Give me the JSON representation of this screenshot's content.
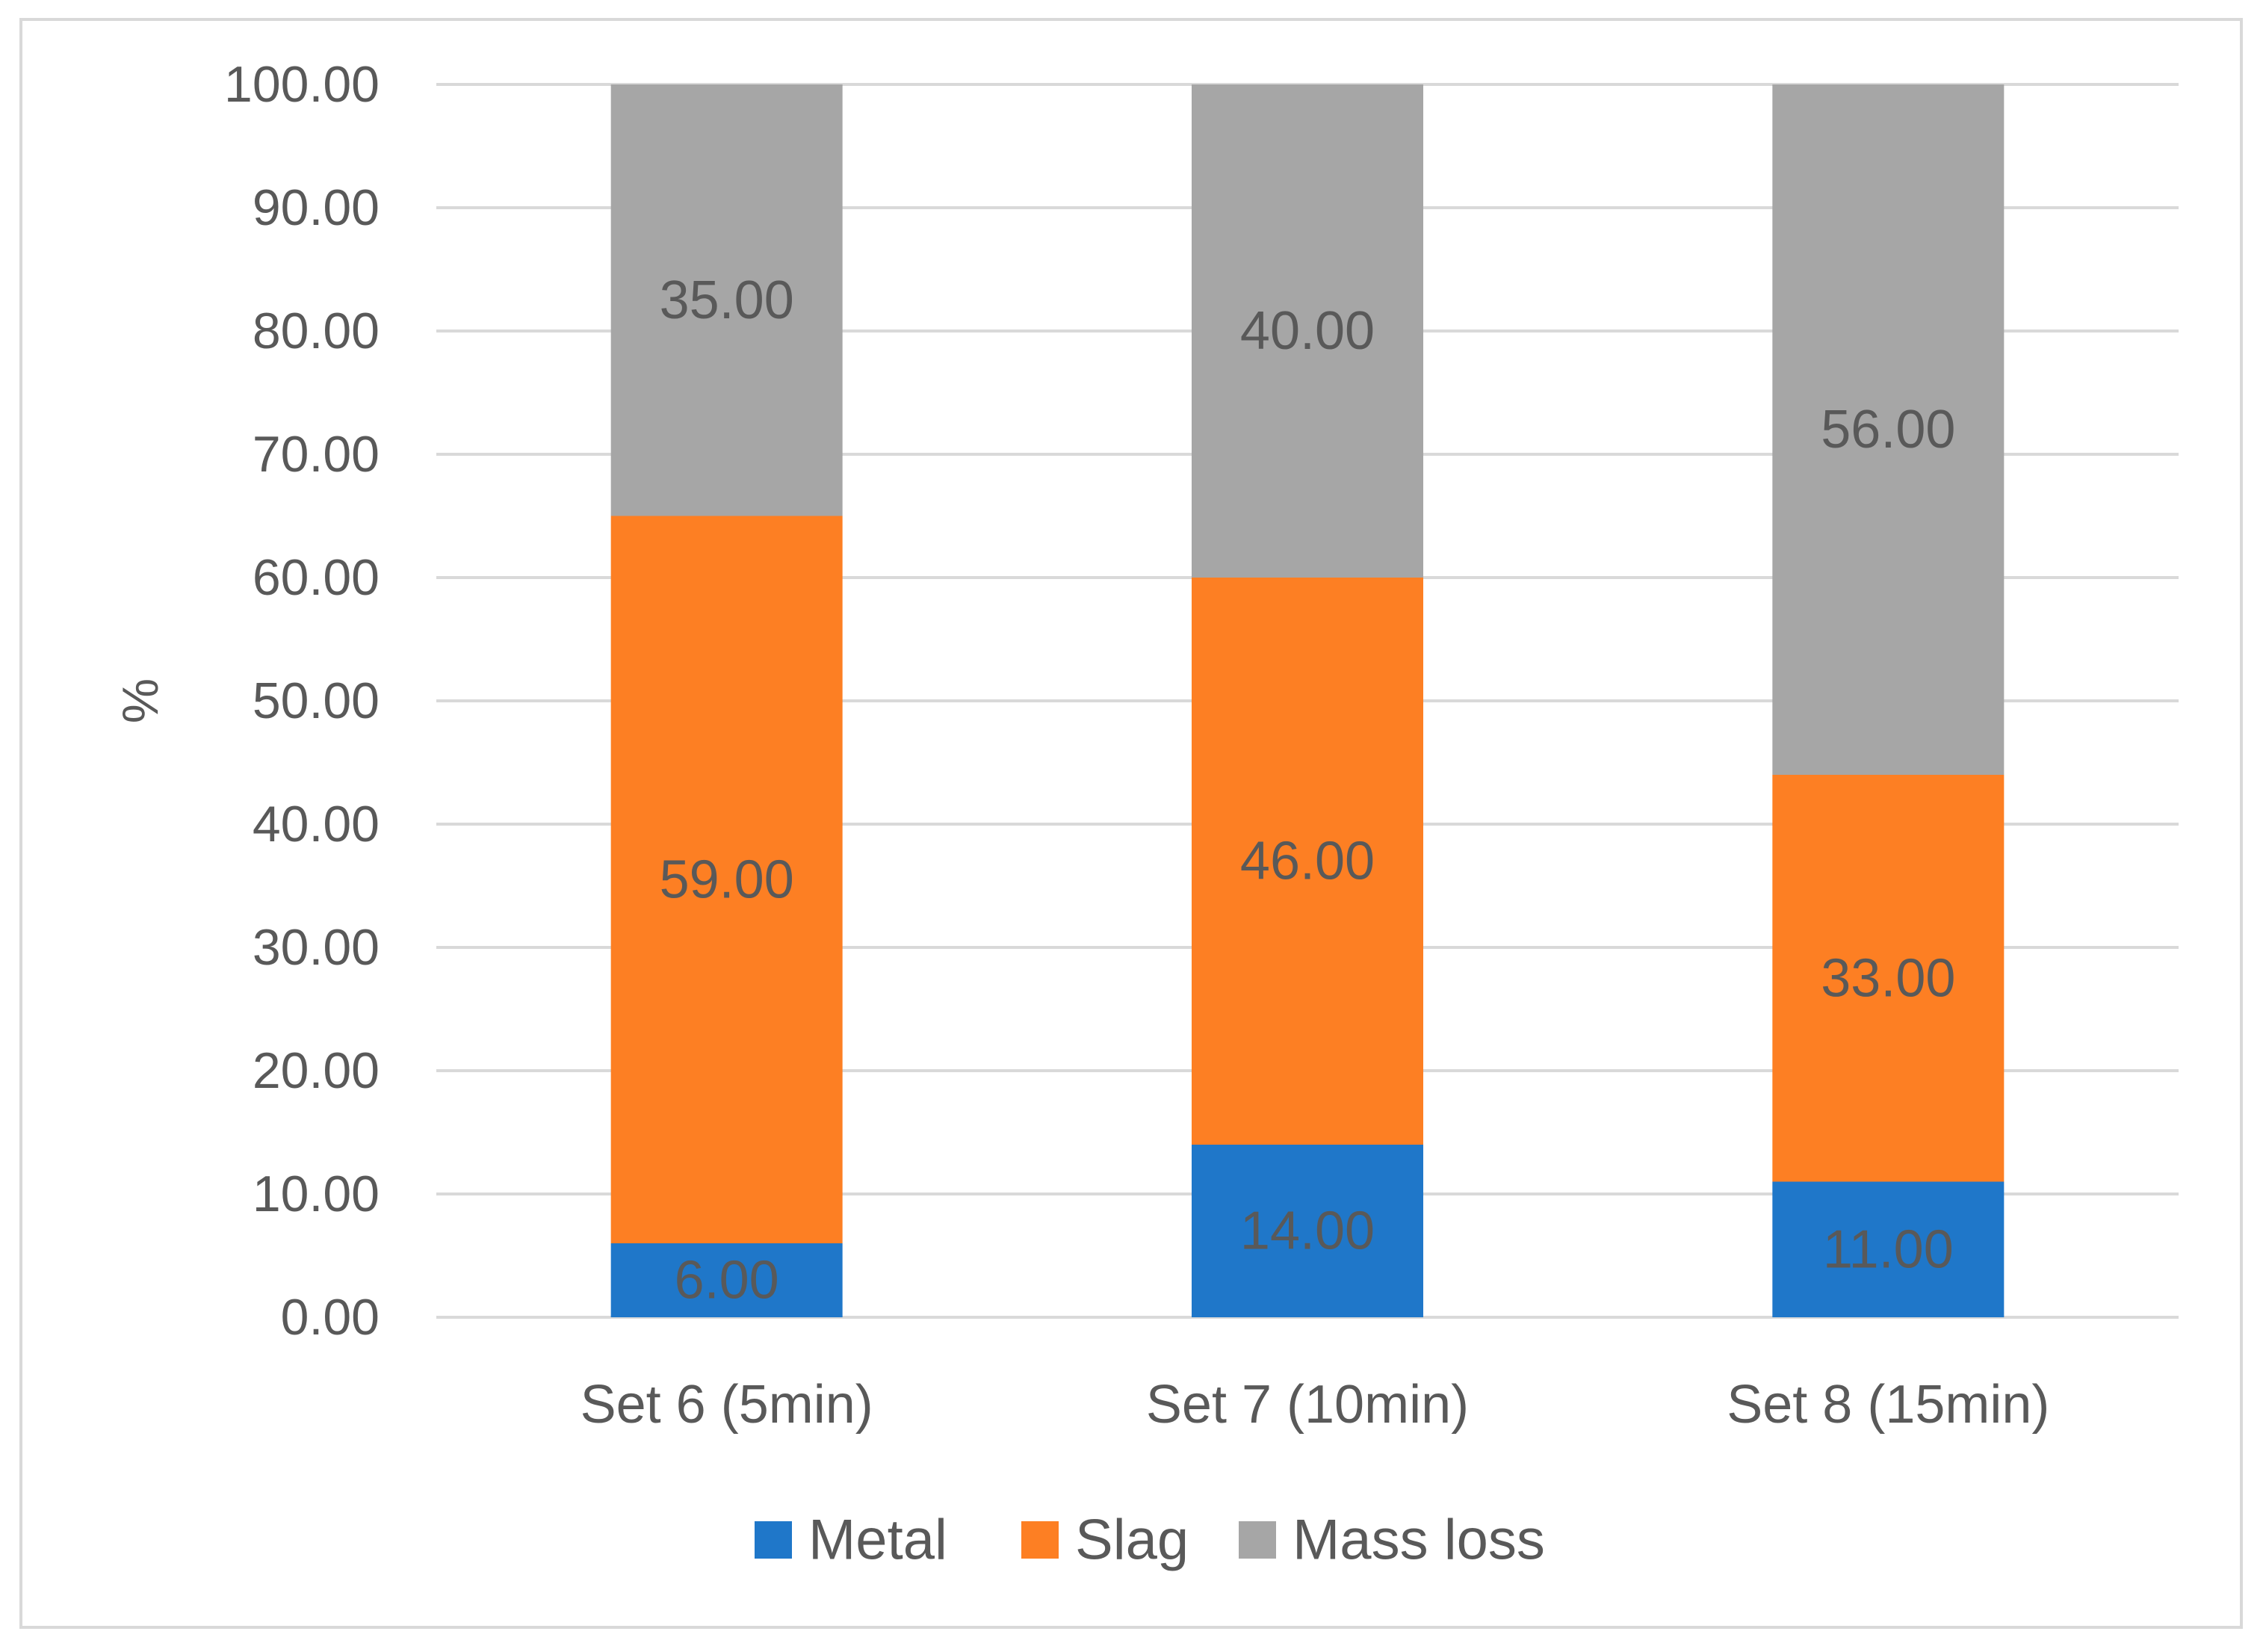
{
  "chart_data": {
    "type": "bar",
    "stacked": true,
    "categories": [
      "Set 6 (5min)",
      "Set 7 (10min)",
      "Set 8 (15min)"
    ],
    "series": [
      {
        "name": "Metal",
        "color": "#1f77c9",
        "values": [
          6.0,
          14.0,
          11.0
        ]
      },
      {
        "name": "Slag",
        "color": "#fd7f23",
        "values": [
          59.0,
          46.0,
          33.0
        ]
      },
      {
        "name": "Mass loss",
        "color": "#a6a6a6",
        "values": [
          35.0,
          40.0,
          56.0
        ]
      }
    ],
    "data_labels": [
      [
        "6.00",
        "14.00",
        "11.00"
      ],
      [
        "59.00",
        "46.00",
        "33.00"
      ],
      [
        "35.00",
        "40.00",
        "56.00"
      ]
    ],
    "y_ticks": [
      "0.00",
      "10.00",
      "20.00",
      "30.00",
      "40.00",
      "50.00",
      "60.00",
      "70.00",
      "80.00",
      "90.00",
      "100.00"
    ],
    "title": "",
    "xlabel": "",
    "ylabel": "%",
    "ylim": [
      0,
      100
    ],
    "grid": true,
    "legend": "bottom"
  },
  "colors": {
    "gridline": "#d9d9d9",
    "text": "#595959",
    "frame": "#d9d9d9"
  }
}
